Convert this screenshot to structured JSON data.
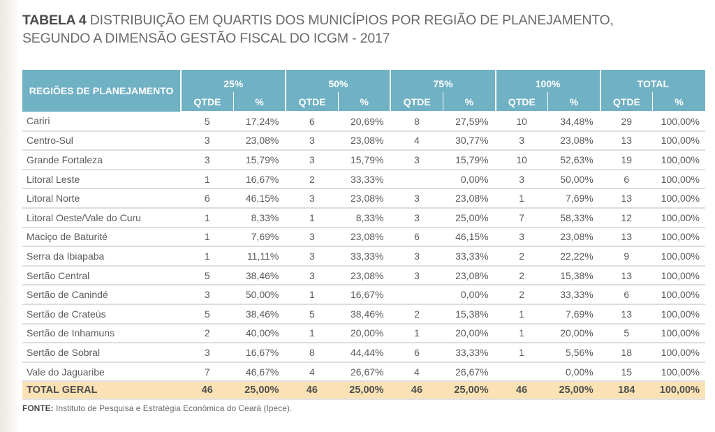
{
  "title": {
    "lead": "TABELA 4",
    "line1_rest": " DISTRIBUIÇÃO EM QUARTIS DOS MUNICÍPIOS POR REGIÃO DE PLANEJAMENTO,",
    "line2": "SEGUNDO A DIMENSÃO GESTÃO FISCAL DO ICGM - 2017"
  },
  "colors": {
    "header_bg": "#70b1c4",
    "total_row_bg": "#fbe2b4",
    "row_divider": "#dcdde2"
  },
  "table": {
    "region_header": "REGIÕES DE PLANEJAMENTO",
    "groups": [
      "25%",
      "50%",
      "75%",
      "100%",
      "TOTAL"
    ],
    "sub_headers": {
      "qty": "QTDE",
      "pct": "%"
    },
    "rows": [
      {
        "region": "Cariri",
        "q25": "5",
        "p25": "17,24%",
        "q50": "6",
        "p50": "20,69%",
        "q75": "8",
        "p75": "27,59%",
        "q100": "10",
        "p100": "34,48%",
        "qt": "29",
        "pt": "100,00%"
      },
      {
        "region": "Centro-Sul",
        "q25": "3",
        "p25": "23,08%",
        "q50": "3",
        "p50": "23,08%",
        "q75": "4",
        "p75": "30,77%",
        "q100": "3",
        "p100": "23,08%",
        "qt": "13",
        "pt": "100,00%"
      },
      {
        "region": "Grande Fortaleza",
        "q25": "3",
        "p25": "15,79%",
        "q50": "3",
        "p50": "15,79%",
        "q75": "3",
        "p75": "15,79%",
        "q100": "10",
        "p100": "52,63%",
        "qt": "19",
        "pt": "100,00%"
      },
      {
        "region": "Litoral Leste",
        "q25": "1",
        "p25": "16,67%",
        "q50": "2",
        "p50": "33,33%",
        "q75": "",
        "p75": "0,00%",
        "q100": "3",
        "p100": "50,00%",
        "qt": "6",
        "pt": "100,00%"
      },
      {
        "region": "Litoral Norte",
        "q25": "6",
        "p25": "46,15%",
        "q50": "3",
        "p50": "23,08%",
        "q75": "3",
        "p75": "23,08%",
        "q100": "1",
        "p100": "7,69%",
        "qt": "13",
        "pt": "100,00%"
      },
      {
        "region": "Litoral Oeste/Vale do Curu",
        "q25": "1",
        "p25": "8,33%",
        "q50": "1",
        "p50": "8,33%",
        "q75": "3",
        "p75": "25,00%",
        "q100": "7",
        "p100": "58,33%",
        "qt": "12",
        "pt": "100,00%"
      },
      {
        "region": "Maciço de Baturité",
        "q25": "1",
        "p25": "7,69%",
        "q50": "3",
        "p50": "23,08%",
        "q75": "6",
        "p75": "46,15%",
        "q100": "3",
        "p100": "23,08%",
        "qt": "13",
        "pt": "100,00%"
      },
      {
        "region": "Serra da Ibiapaba",
        "q25": "1",
        "p25": "11,11%",
        "q50": "3",
        "p50": "33,33%",
        "q75": "3",
        "p75": "33,33%",
        "q100": "2",
        "p100": "22,22%",
        "qt": "9",
        "pt": "100,00%"
      },
      {
        "region": "Sertão Central",
        "q25": "5",
        "p25": "38,46%",
        "q50": "3",
        "p50": "23,08%",
        "q75": "3",
        "p75": "23,08%",
        "q100": "2",
        "p100": "15,38%",
        "qt": "13",
        "pt": "100,00%"
      },
      {
        "region": "Sertão de Canindé",
        "q25": "3",
        "p25": "50,00%",
        "q50": "1",
        "p50": "16,67%",
        "q75": "",
        "p75": "0,00%",
        "q100": "2",
        "p100": "33,33%",
        "qt": "6",
        "pt": "100,00%"
      },
      {
        "region": "Sertão de Crateús",
        "q25": "5",
        "p25": "38,46%",
        "q50": "5",
        "p50": "38,46%",
        "q75": "2",
        "p75": "15,38%",
        "q100": "1",
        "p100": "7,69%",
        "qt": "13",
        "pt": "100,00%"
      },
      {
        "region": "Sertão de Inhamuns",
        "q25": "2",
        "p25": "40,00%",
        "q50": "1",
        "p50": "20,00%",
        "q75": "1",
        "p75": "20,00%",
        "q100": "1",
        "p100": "20,00%",
        "qt": "5",
        "pt": "100,00%"
      },
      {
        "region": "Sertão de Sobral",
        "q25": "3",
        "p25": "16,67%",
        "q50": "8",
        "p50": "44,44%",
        "q75": "6",
        "p75": "33,33%",
        "q100": "1",
        "p100": "5,56%",
        "qt": "18",
        "pt": "100,00%"
      },
      {
        "region": "Vale do Jaguaribe",
        "q25": "7",
        "p25": "46,67%",
        "q50": "4",
        "p50": "26,67%",
        "q75": "4",
        "p75": "26,67%",
        "q100": "",
        "p100": "0,00%",
        "qt": "15",
        "pt": "100,00%"
      }
    ],
    "total": {
      "region": "TOTAL GERAL",
      "q25": "46",
      "p25": "25,00%",
      "q50": "46",
      "p50": "25,00%",
      "q75": "46",
      "p75": "25,00%",
      "q100": "46",
      "p100": "25,00%",
      "qt": "184",
      "pt": "100,00%"
    }
  },
  "source": {
    "label": "FONTE:",
    "text": " Instituto de Pesquisa e Estratégia Econômica do Ceará (Ipece)."
  }
}
